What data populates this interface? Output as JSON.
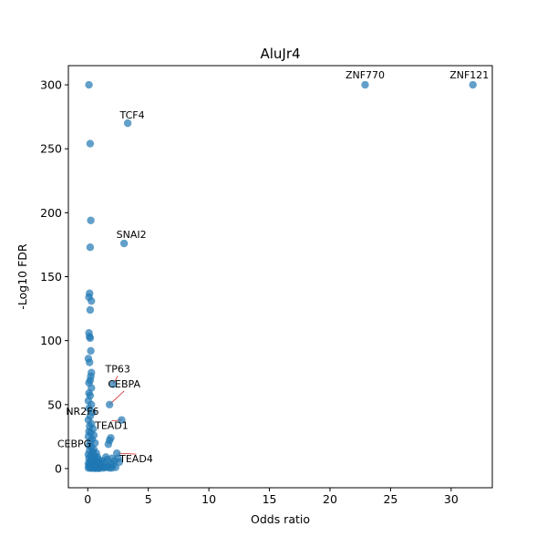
{
  "chart_data": {
    "type": "scatter",
    "title": "AluJr4",
    "xlabel": "Odds ratio",
    "ylabel": "-Log10 FDR",
    "xlim": [
      -1.6,
      33.4
    ],
    "ylim": [
      -15,
      315
    ],
    "xticks": [
      0,
      5,
      10,
      15,
      20,
      25,
      30
    ],
    "yticks": [
      0,
      50,
      100,
      150,
      200,
      250,
      300
    ],
    "grid": false,
    "legend": "none",
    "marker_color": "#1f77b4",
    "connector_color": "#d62728",
    "points": [
      {
        "x": 0.1,
        "y": 300
      },
      {
        "x": 0.2,
        "y": 254
      },
      {
        "x": 0.25,
        "y": 194
      },
      {
        "x": 0.2,
        "y": 173
      },
      {
        "x": 0.15,
        "y": 137
      },
      {
        "x": 0.1,
        "y": 134
      },
      {
        "x": 0.3,
        "y": 131
      },
      {
        "x": 0.2,
        "y": 124
      },
      {
        "x": 0.1,
        "y": 106
      },
      {
        "x": 0.15,
        "y": 103
      },
      {
        "x": 0.2,
        "y": 102
      },
      {
        "x": 0.25,
        "y": 92
      },
      {
        "x": 0.05,
        "y": 86
      },
      {
        "x": 0.15,
        "y": 83
      },
      {
        "x": 0.3,
        "y": 75
      },
      {
        "x": 0.25,
        "y": 72
      },
      {
        "x": 0.2,
        "y": 69
      },
      {
        "x": 0.1,
        "y": 67
      },
      {
        "x": 0.3,
        "y": 63
      },
      {
        "x": 0.1,
        "y": 59
      },
      {
        "x": 0.2,
        "y": 57
      },
      {
        "x": 0.05,
        "y": 53
      },
      {
        "x": 0.3,
        "y": 50
      },
      {
        "x": 0.1,
        "y": 47
      },
      {
        "x": 0.4,
        "y": 44
      },
      {
        "x": 0.2,
        "y": 41
      },
      {
        "x": 0.05,
        "y": 38
      },
      {
        "x": 0.3,
        "y": 35
      },
      {
        "x": 0.15,
        "y": 33
      },
      {
        "x": 0.45,
        "y": 31
      },
      {
        "x": 0.1,
        "y": 29
      },
      {
        "x": 0.25,
        "y": 28
      },
      {
        "x": 0.5,
        "y": 26
      },
      {
        "x": 0.05,
        "y": 25
      },
      {
        "x": 0.35,
        "y": 23
      },
      {
        "x": 0.2,
        "y": 21
      },
      {
        "x": 0.6,
        "y": 20
      },
      {
        "x": 0.1,
        "y": 18
      },
      {
        "x": 0.3,
        "y": 17
      },
      {
        "x": 0.5,
        "y": 15
      },
      {
        "x": 0.15,
        "y": 14
      },
      {
        "x": 0.4,
        "y": 13
      },
      {
        "x": 0.7,
        "y": 12
      },
      {
        "x": 0.05,
        "y": 11
      },
      {
        "x": 0.25,
        "y": 10
      },
      {
        "x": 0.55,
        "y": 10
      },
      {
        "x": 0.8,
        "y": 9
      },
      {
        "x": 0.1,
        "y": 8
      },
      {
        "x": 0.35,
        "y": 8
      },
      {
        "x": 0.6,
        "y": 7
      },
      {
        "x": 0.9,
        "y": 7
      },
      {
        "x": 0.2,
        "y": 6
      },
      {
        "x": 0.45,
        "y": 6
      },
      {
        "x": 0.75,
        "y": 5
      },
      {
        "x": 1.0,
        "y": 5
      },
      {
        "x": 0.05,
        "y": 4
      },
      {
        "x": 0.3,
        "y": 4
      },
      {
        "x": 0.55,
        "y": 4
      },
      {
        "x": 0.85,
        "y": 4
      },
      {
        "x": 1.1,
        "y": 3
      },
      {
        "x": 0.15,
        "y": 3
      },
      {
        "x": 0.4,
        "y": 3
      },
      {
        "x": 0.65,
        "y": 2
      },
      {
        "x": 0.95,
        "y": 2
      },
      {
        "x": 1.2,
        "y": 2
      },
      {
        "x": 1.4,
        "y": 1
      },
      {
        "x": 0.1,
        "y": 2
      },
      {
        "x": 0.5,
        "y": 1
      },
      {
        "x": 0.8,
        "y": 1
      },
      {
        "x": 1.6,
        "y": 1
      },
      {
        "x": 1.3,
        "y": 0.5
      },
      {
        "x": 0.2,
        "y": 0.5
      },
      {
        "x": 0.7,
        "y": 0.3
      },
      {
        "x": 1.0,
        "y": 0.3
      },
      {
        "x": 1.8,
        "y": 0.5
      },
      {
        "x": 2.0,
        "y": 0.5
      },
      {
        "x": 0.35,
        "y": 0.2
      },
      {
        "x": 0.6,
        "y": 0.2
      },
      {
        "x": 0.9,
        "y": 0.2
      },
      {
        "x": 0.05,
        "y": 0.5
      },
      {
        "x": 1.5,
        "y": 9
      },
      {
        "x": 1.2,
        "y": 6
      },
      {
        "x": 1.9,
        "y": 4
      },
      {
        "x": 2.1,
        "y": 3
      },
      {
        "x": 1.7,
        "y": 2
      },
      {
        "x": 2.3,
        "y": 1
      },
      {
        "x": 2.0,
        "y": 8
      },
      {
        "x": 1.6,
        "y": 7
      },
      {
        "x": 2.2,
        "y": 6
      },
      {
        "x": 1.4,
        "y": 5
      },
      {
        "x": 1.8,
        "y": 22
      },
      {
        "x": 1.9,
        "y": 24
      },
      {
        "x": 1.7,
        "y": 19
      },
      {
        "x": 2.1,
        "y": 66
      },
      {
        "x": 1.8,
        "y": 50
      },
      {
        "x": 2.8,
        "y": 38
      },
      {
        "x": 2.4,
        "y": 12
      },
      {
        "x": 2.5,
        "y": 8
      },
      {
        "x": 2.6,
        "y": 5
      },
      {
        "x": 3.0,
        "y": 176
      },
      {
        "x": 3.3,
        "y": 270
      },
      {
        "x": 22.9,
        "y": 300
      },
      {
        "x": 31.8,
        "y": 300
      }
    ],
    "annotations": [
      {
        "label": "ZNF770",
        "x": 22.9,
        "y": 300
      },
      {
        "label": "ZNF121",
        "x": 31.8,
        "y": 300
      },
      {
        "label": "TCF4",
        "x": 3.3,
        "y": 270
      },
      {
        "label": "SNAI2",
        "x": 3.0,
        "y": 176
      },
      {
        "label": "TP63",
        "x": 2.1,
        "y": 66
      },
      {
        "label": "CEBPA",
        "x": 1.8,
        "y": 50
      },
      {
        "label": "NR2F6",
        "x": 1.0,
        "y": 47
      },
      {
        "label": "TEAD1",
        "x": 2.8,
        "y": 38
      },
      {
        "label": "CEBPG",
        "x": 0.6,
        "y": 24
      },
      {
        "label": "TEAD4",
        "x": 2.5,
        "y": 12
      }
    ]
  }
}
